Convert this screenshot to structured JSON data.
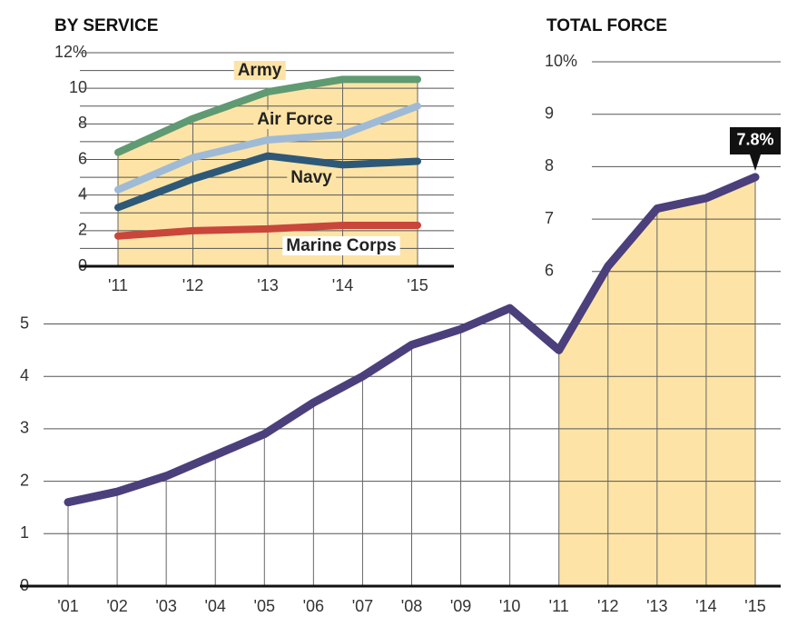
{
  "chart_data": [
    {
      "type": "line",
      "title": "TOTAL FORCE",
      "categories": [
        "'01",
        "'02",
        "'03",
        "'04",
        "'05",
        "'06",
        "'07",
        "'08",
        "'09",
        "'10",
        "'11",
        "'12",
        "'13",
        "'14",
        "'15"
      ],
      "series": [
        {
          "color": "#4b3f7c",
          "values": [
            1.6,
            1.8,
            2.1,
            2.5,
            2.9,
            3.5,
            4.0,
            4.6,
            4.9,
            5.3,
            4.5,
            6.1,
            7.2,
            7.4,
            7.8
          ],
          "value_labels": [
            null,
            null,
            null,
            null,
            null,
            null,
            null,
            null,
            null,
            null,
            null,
            null,
            null,
            null,
            "7.8%"
          ]
        }
      ],
      "highlight": [
        "'11",
        "'15"
      ],
      "highlight_color": "#fde4a6",
      "ylim": [
        0,
        10
      ],
      "yticks": [
        0,
        1,
        2,
        3,
        4,
        5,
        6,
        7,
        8,
        9,
        {
          "value": 10,
          "label": "10%"
        }
      ],
      "grid": true
    },
    {
      "type": "line",
      "title": "BY SERVICE",
      "categories": [
        "'11",
        "'12",
        "'13",
        "'14",
        "'15"
      ],
      "series": [
        {
          "name": "Army",
          "color": "#5f9a73",
          "values": [
            6.4,
            8.3,
            9.8,
            10.5,
            10.5
          ]
        },
        {
          "name": "Air Force",
          "color": "#9fbad6",
          "values": [
            4.3,
            6.1,
            7.1,
            7.4,
            9.0
          ]
        },
        {
          "name": "Navy",
          "color": "#2e5878",
          "values": [
            3.3,
            4.9,
            6.2,
            5.7,
            5.9
          ]
        },
        {
          "name": "Marine Corps",
          "color": "#c9463b",
          "values": [
            1.7,
            2.0,
            2.1,
            2.3,
            2.3
          ]
        }
      ],
      "fill_under": "Army",
      "fill_color": "#fde4a6",
      "ylim": [
        0,
        12
      ],
      "yticks": [
        0,
        2,
        4,
        6,
        8,
        10,
        {
          "value": 12,
          "label": "12%"
        }
      ],
      "minor_yticks": [
        1,
        3,
        5,
        7,
        9,
        11
      ],
      "grid": true
    }
  ]
}
